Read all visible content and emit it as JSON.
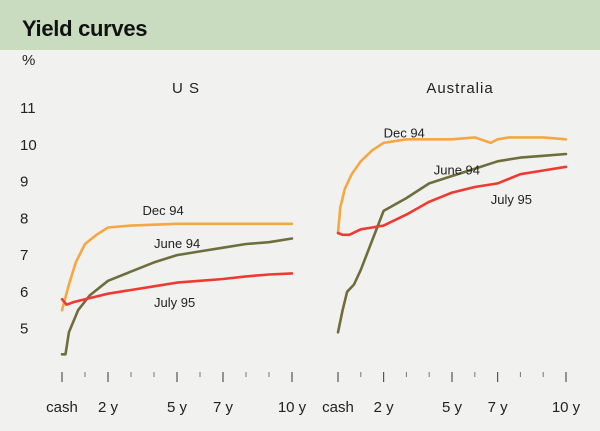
{
  "title": "Yield curves",
  "unit": "%",
  "colors": {
    "Dec 94": "#f5a742",
    "June 94": "#6e6e3c",
    "July 95": "#ee3a30"
  },
  "yticks": [
    "11",
    "10",
    "9",
    "8",
    "7",
    "6",
    "5"
  ],
  "chart_data": [
    {
      "type": "line",
      "title": "U S",
      "x_tick_labels": [
        "cash",
        "2 y",
        "5 y",
        "7 y",
        "10 y"
      ],
      "x_tick_positions": [
        0,
        2,
        5,
        7,
        10
      ],
      "xlim": [
        0,
        10
      ],
      "ylim": [
        4.2,
        11
      ],
      "series": [
        {
          "name": "Dec 94",
          "x": [
            0,
            0.3,
            0.6,
            1,
            1.5,
            2,
            3,
            5,
            7,
            10
          ],
          "y": [
            5.5,
            6.2,
            6.8,
            7.3,
            7.55,
            7.75,
            7.8,
            7.85,
            7.85,
            7.85
          ]
        },
        {
          "name": "June 94",
          "x": [
            0,
            0.15,
            0.3,
            0.7,
            1.2,
            2,
            3,
            4,
            5,
            6,
            7,
            8,
            9,
            10
          ],
          "y": [
            4.3,
            4.3,
            4.9,
            5.5,
            5.9,
            6.3,
            6.55,
            6.8,
            7.0,
            7.1,
            7.2,
            7.3,
            7.35,
            7.45
          ]
        },
        {
          "name": "July 95",
          "x": [
            0,
            0.2,
            0.5,
            1,
            2,
            3,
            4,
            5,
            6,
            7,
            8,
            9,
            10
          ],
          "y": [
            5.8,
            5.65,
            5.72,
            5.8,
            5.95,
            6.05,
            6.15,
            6.25,
            6.3,
            6.35,
            6.42,
            6.47,
            6.5
          ]
        }
      ],
      "annotations": [
        {
          "text": "Dec 94",
          "x": 3.5,
          "y": 8.2
        },
        {
          "text": "June 94",
          "x": 4.0,
          "y": 7.3
        },
        {
          "text": "July 95",
          "x": 4.0,
          "y": 5.7
        }
      ]
    },
    {
      "type": "line",
      "title": "Australia",
      "x_tick_labels": [
        "cash",
        "2 y",
        "5 y",
        "7 y",
        "10 y"
      ],
      "x_tick_positions": [
        0,
        2,
        5,
        7,
        10
      ],
      "xlim": [
        0,
        10
      ],
      "ylim": [
        4.2,
        11
      ],
      "series": [
        {
          "name": "Dec 94",
          "x": [
            0,
            0.1,
            0.3,
            0.6,
            1,
            1.5,
            2,
            3,
            4,
            5,
            6,
            6.7,
            7,
            7.5,
            8,
            9,
            10
          ],
          "y": [
            7.6,
            8.3,
            8.8,
            9.2,
            9.55,
            9.85,
            10.05,
            10.15,
            10.15,
            10.15,
            10.2,
            10.05,
            10.15,
            10.2,
            10.2,
            10.2,
            10.15
          ]
        },
        {
          "name": "June 94",
          "x": [
            0,
            0.2,
            0.4,
            0.7,
            1,
            1.5,
            2,
            3,
            4,
            5,
            6,
            7,
            8,
            9,
            10
          ],
          "y": [
            4.9,
            5.5,
            6.0,
            6.2,
            6.6,
            7.4,
            8.2,
            8.55,
            8.95,
            9.15,
            9.35,
            9.55,
            9.65,
            9.7,
            9.75
          ]
        },
        {
          "name": "July 95",
          "x": [
            0,
            0.2,
            0.5,
            1,
            1.5,
            2,
            3,
            4,
            5,
            6,
            7,
            8,
            9,
            10
          ],
          "y": [
            7.6,
            7.55,
            7.55,
            7.7,
            7.75,
            7.8,
            8.1,
            8.45,
            8.7,
            8.85,
            8.95,
            9.2,
            9.3,
            9.4
          ]
        }
      ],
      "annotations": [
        {
          "text": "Dec 94",
          "x": 2.0,
          "y": 10.3
        },
        {
          "text": "June 94",
          "x": 4.2,
          "y": 9.3
        },
        {
          "text": "July 95",
          "x": 6.7,
          "y": 8.5
        }
      ]
    }
  ]
}
